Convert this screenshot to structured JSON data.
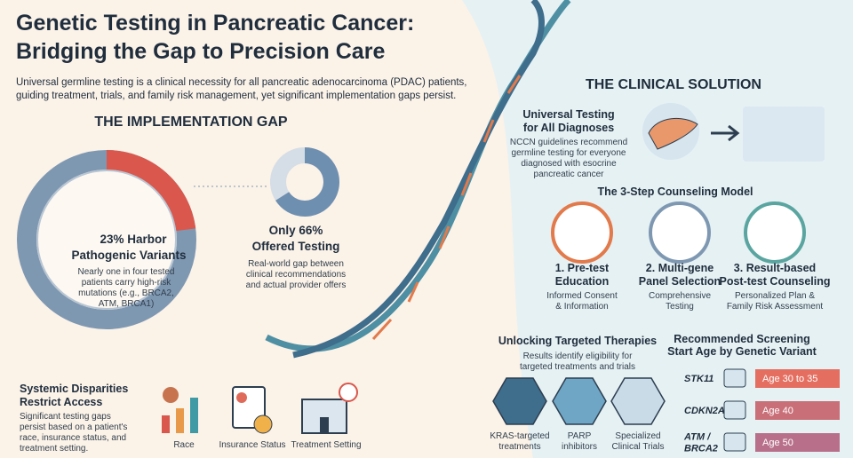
{
  "header": {
    "title": [
      "Genetic Testing in Pancreatic Cancer:",
      "Bridging the Gap to Precision Care"
    ],
    "intro": [
      "Universal germline testing is a clinical necessity for all pancreatic adenocarcinoma (PDAC) patients,",
      "guiding treatment, trials, and family risk management, yet significant implementation gaps persist."
    ]
  },
  "gap": {
    "heading": "THE IMPLEMENTATION GAP",
    "variants": {
      "share": 23,
      "stat": "23% Harbor",
      "label": "Pathogenic Variants",
      "desc": [
        "Nearly one in four tested",
        "patients carry high-risk",
        "mutations (e.g., BRCA2,",
        "ATM, BRCA1)"
      ]
    },
    "offered": {
      "share": 66,
      "stat": "Only 66%",
      "label": "Offered Testing",
      "desc": [
        "Real-world gap between",
        "clinical recommendations",
        "and actual provider offers"
      ]
    }
  },
  "disparities": {
    "title": [
      "Systemic Disparities",
      "Restrict Access"
    ],
    "desc": [
      "Significant testing gaps",
      "persist based on a patient's",
      "race, insurance status, and",
      "treatment setting."
    ],
    "factors": [
      "Race",
      "Insurance Status",
      "Treatment Setting"
    ]
  },
  "solution": {
    "heading": "THE CLINICAL SOLUTION",
    "universal": {
      "title": [
        "Universal Testing",
        "for All Diagnoses"
      ],
      "desc": [
        "NCCN guidelines recommend",
        "germline testing for everyone",
        "diagnosed with esocrine",
        "pancreatic cancer"
      ]
    },
    "counseling": {
      "title": "The 3-Step Counseling Model",
      "steps": [
        {
          "title": [
            "1. Pre-test",
            "Education"
          ],
          "desc": [
            "Informed Consent",
            "& Information"
          ]
        },
        {
          "title": [
            "2. Multi-gene",
            "Panel Selection"
          ],
          "desc": [
            "Comprehensive",
            "Testing"
          ]
        },
        {
          "title": [
            "3. Result-based",
            "Post-test Counseling"
          ],
          "desc": [
            "Personalized Plan &",
            "Family Risk Assessment"
          ]
        }
      ]
    },
    "therapies": {
      "title": "Unlocking Targeted Therapies",
      "desc": [
        "Results identify eligibility for",
        "targeted treatments and trials"
      ],
      "items": [
        [
          "KRAS-targeted",
          "treatments"
        ],
        [
          "PARP",
          "inhibitors"
        ],
        [
          "Specialized",
          "Clinical Trials"
        ]
      ]
    },
    "screening": {
      "title": [
        "Recommended Screening",
        "Start Age by Genetic Variant"
      ],
      "rows": [
        {
          "gene": [
            "STK11"
          ],
          "age": "Age 30 to 35"
        },
        {
          "gene": [
            "CDKN2A"
          ],
          "age": "Age 40"
        },
        {
          "gene": [
            "ATM /",
            "BRCA2"
          ],
          "age": "Age 50"
        }
      ]
    }
  }
}
